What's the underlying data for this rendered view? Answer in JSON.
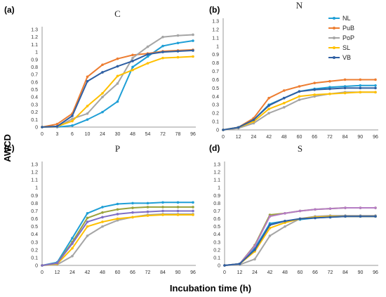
{
  "figure": {
    "ylabel": "AWCD",
    "xlabel": "Incubation time (h)"
  },
  "legend": [
    {
      "name": "NL",
      "color": "#1f9fd6"
    },
    {
      "name": "PuB",
      "color": "#ed7d31"
    },
    {
      "name": "PoP",
      "color": "#a5a5a5"
    },
    {
      "name": "SL",
      "color": "#ffc000"
    },
    {
      "name": "VB",
      "color": "#2e5fa3"
    }
  ],
  "chart_data": [
    {
      "panel": "(a)",
      "type": "line",
      "title": "C",
      "x": [
        "0",
        "3",
        "6",
        "10",
        "24",
        "30",
        "48",
        "54",
        "72",
        "78",
        "96"
      ],
      "ylim": [
        0,
        1.3
      ],
      "yticks": [
        "0",
        "0.1",
        "0.2",
        "0.3",
        "0.4",
        "0.5",
        "0.6",
        "0.7",
        "0.8",
        "0.9",
        "1",
        "1.1",
        "1.2",
        "1.3"
      ],
      "series": [
        {
          "name": "NL",
          "color": "#1f9fd6",
          "values": [
            0,
            0,
            0.02,
            0.1,
            0.2,
            0.34,
            0.8,
            0.94,
            1.08,
            1.12,
            1.15
          ]
        },
        {
          "name": "PuB",
          "color": "#ed7d31",
          "values": [
            0,
            0.04,
            0.18,
            0.67,
            0.83,
            0.91,
            0.96,
            0.98,
            1.01,
            1.02,
            1.03
          ]
        },
        {
          "name": "PoP",
          "color": "#a5a5a5",
          "values": [
            0,
            0,
            0.11,
            0.18,
            0.4,
            0.58,
            0.92,
            1.07,
            1.2,
            1.22,
            1.23
          ]
        },
        {
          "name": "SL",
          "color": "#ffc000",
          "values": [
            0,
            0.01,
            0.08,
            0.28,
            0.45,
            0.68,
            0.76,
            0.85,
            0.92,
            0.93,
            0.94
          ]
        },
        {
          "name": "VB",
          "color": "#2e5fa3",
          "values": [
            0,
            0.01,
            0.15,
            0.61,
            0.73,
            0.81,
            0.88,
            0.97,
            1.0,
            1.01,
            1.02
          ]
        }
      ]
    },
    {
      "panel": "(b)",
      "type": "line",
      "title": "N",
      "x": [
        "0",
        "12",
        "24",
        "42",
        "48",
        "60",
        "66",
        "72",
        "84",
        "90",
        "96"
      ],
      "ylim": [
        0,
        1.3
      ],
      "yticks": [
        "0",
        "0.1",
        "0.2",
        "0.3",
        "0.4",
        "0.5",
        "0.6",
        "0.7",
        "0.8",
        "0.9",
        "1",
        "1.1",
        "1.2",
        "1.3"
      ],
      "series": [
        {
          "name": "NL",
          "color": "#1f9fd6",
          "values": [
            0,
            0.03,
            0.12,
            0.3,
            0.38,
            0.46,
            0.49,
            0.51,
            0.52,
            0.53,
            0.53
          ]
        },
        {
          "name": "PuB",
          "color": "#ed7d31",
          "values": [
            0,
            0.03,
            0.14,
            0.38,
            0.47,
            0.52,
            0.56,
            0.58,
            0.6,
            0.6,
            0.6
          ]
        },
        {
          "name": "PoP",
          "color": "#a5a5a5",
          "values": [
            0,
            0.02,
            0.08,
            0.2,
            0.27,
            0.36,
            0.4,
            0.43,
            0.45,
            0.45,
            0.45
          ]
        },
        {
          "name": "SL",
          "color": "#ffc000",
          "values": [
            0,
            0.03,
            0.1,
            0.25,
            0.32,
            0.4,
            0.42,
            0.43,
            0.44,
            0.45,
            0.45
          ]
        },
        {
          "name": "VB",
          "color": "#2e5fa3",
          "values": [
            0,
            0.03,
            0.12,
            0.29,
            0.38,
            0.46,
            0.48,
            0.49,
            0.5,
            0.5,
            0.5
          ]
        }
      ]
    },
    {
      "panel": "(c)",
      "type": "line",
      "title": "P",
      "x": [
        "0",
        "12",
        "24",
        "42",
        "48",
        "60",
        "66",
        "72",
        "84",
        "90",
        "96"
      ],
      "ylim": [
        0,
        1.3
      ],
      "yticks": [
        "0",
        "0.1",
        "0.2",
        "0.3",
        "0.4",
        "0.5",
        "0.6",
        "0.7",
        "0.8",
        "0.9",
        "1",
        "1.1",
        "1.2",
        "1.3"
      ],
      "series": [
        {
          "name": "",
          "color": "#1f9fd6",
          "values": [
            0,
            0.04,
            0.35,
            0.67,
            0.75,
            0.79,
            0.8,
            0.8,
            0.81,
            0.81,
            0.81
          ]
        },
        {
          "name": "",
          "color": "#a5a5a5",
          "values": [
            0,
            0.01,
            0.12,
            0.38,
            0.5,
            0.58,
            0.62,
            0.65,
            0.66,
            0.66,
            0.66
          ]
        },
        {
          "name": "",
          "color": "#ffc000",
          "values": [
            0,
            0.02,
            0.22,
            0.5,
            0.56,
            0.6,
            0.62,
            0.64,
            0.65,
            0.65,
            0.65
          ]
        },
        {
          "name": "",
          "color": "#9aa23a",
          "values": [
            0,
            0.03,
            0.3,
            0.61,
            0.68,
            0.72,
            0.74,
            0.75,
            0.75,
            0.75,
            0.75
          ]
        },
        {
          "name": "",
          "color": "#7f6fc6",
          "values": [
            0,
            0.03,
            0.28,
            0.56,
            0.62,
            0.66,
            0.68,
            0.69,
            0.7,
            0.7,
            0.7
          ]
        }
      ]
    },
    {
      "panel": "(d)",
      "type": "line",
      "title": "S",
      "x": [
        "0",
        "12",
        "24",
        "42",
        "48",
        "60",
        "66",
        "72",
        "84",
        "90",
        "96"
      ],
      "ylim": [
        0,
        1.3
      ],
      "yticks": [
        "0",
        "0.1",
        "0.2",
        "0.3",
        "0.4",
        "0.5",
        "0.6",
        "0.7",
        "0.8",
        "0.9",
        "1",
        "1.1",
        "1.2",
        "1.3"
      ],
      "series": [
        {
          "name": "",
          "color": "#1f9fd6",
          "values": [
            0,
            0.02,
            0.22,
            0.54,
            0.57,
            0.59,
            0.61,
            0.62,
            0.63,
            0.63,
            0.63
          ]
        },
        {
          "name": "",
          "color": "#a5a5a5",
          "values": [
            0,
            0.01,
            0.08,
            0.38,
            0.5,
            0.6,
            0.63,
            0.64,
            0.64,
            0.64,
            0.64
          ]
        },
        {
          "name": "",
          "color": "#ffc000",
          "values": [
            0,
            0.02,
            0.18,
            0.48,
            0.55,
            0.6,
            0.62,
            0.63,
            0.63,
            0.63,
            0.63
          ]
        },
        {
          "name": "",
          "color": "#9aa23a",
          "values": [
            0,
            0.02,
            0.26,
            0.65,
            0.67,
            0.7,
            0.72,
            0.73,
            0.74,
            0.74,
            0.74
          ]
        },
        {
          "name": "",
          "color": "#b57cc4",
          "values": [
            0,
            0.02,
            0.25,
            0.63,
            0.67,
            0.7,
            0.72,
            0.73,
            0.74,
            0.74,
            0.74
          ]
        },
        {
          "name": "",
          "color": "#2e5fa3",
          "values": [
            0,
            0.02,
            0.2,
            0.52,
            0.57,
            0.6,
            0.61,
            0.62,
            0.63,
            0.63,
            0.63
          ]
        }
      ]
    }
  ]
}
